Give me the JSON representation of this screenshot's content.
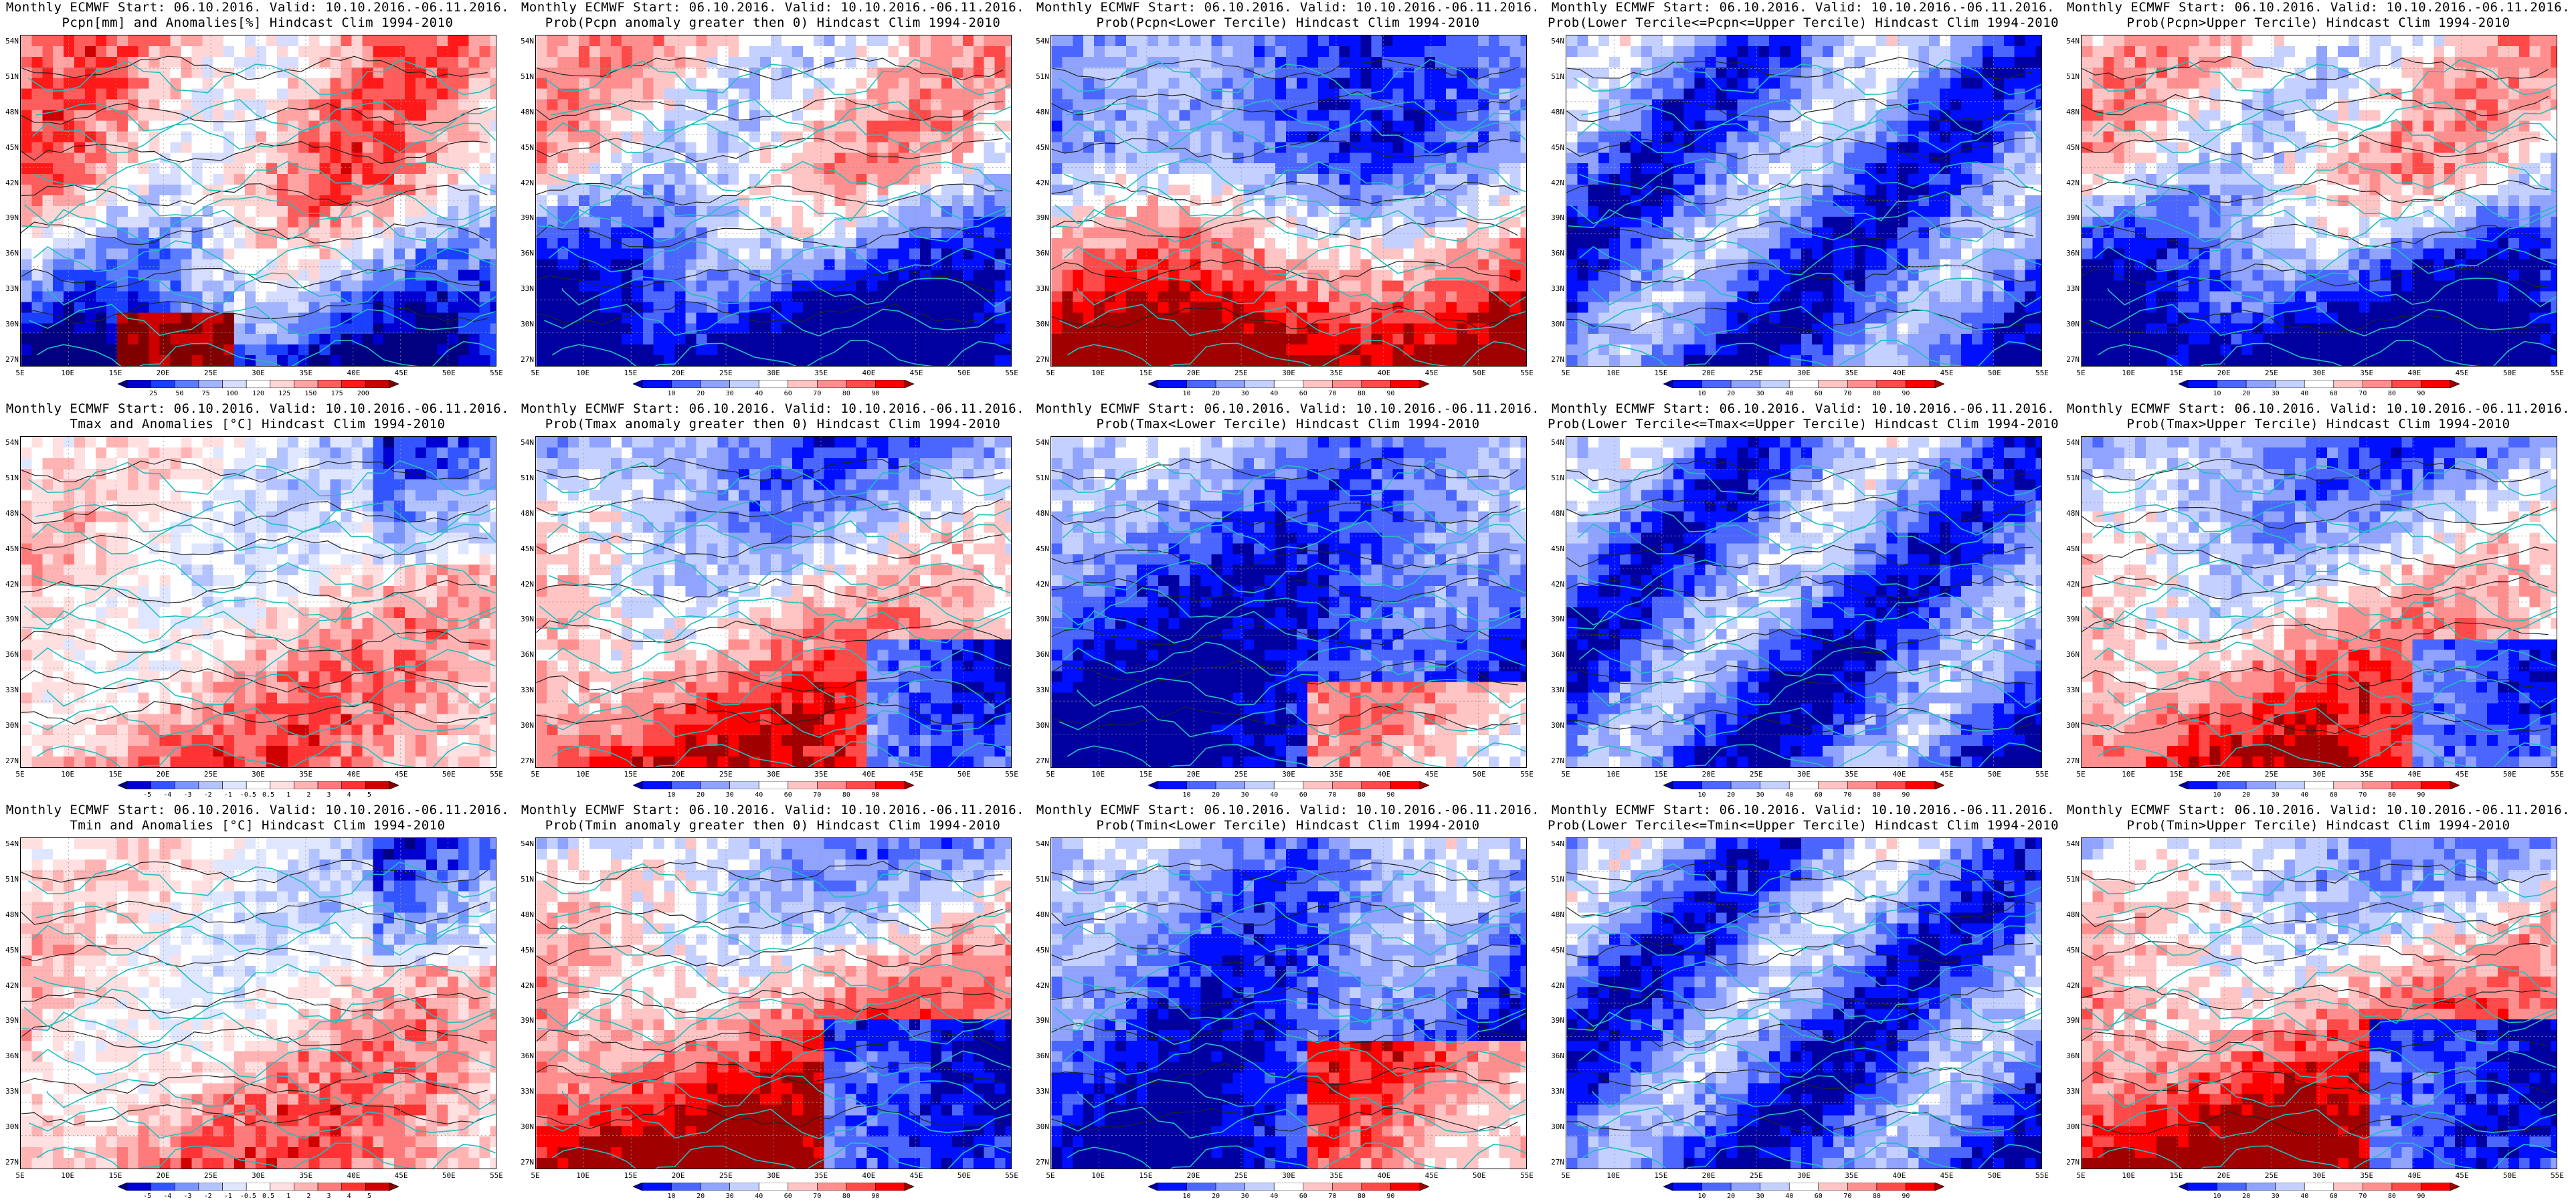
{
  "header_line": "Monthly ECMWF Start: 06.10.2016. Valid: 10.10.2016.-06.11.2016.",
  "lat_labels": [
    "54N",
    "51N",
    "48N",
    "45N",
    "42N",
    "39N",
    "36N",
    "33N",
    "30N",
    "27N"
  ],
  "lon_labels": [
    "5E",
    "10E",
    "15E",
    "20E",
    "25E",
    "30E",
    "35E",
    "40E",
    "45E",
    "50E",
    "55E"
  ],
  "colors": {
    "coast": "#1fbfbf",
    "contour": "#222222",
    "white": "#ffffff"
  },
  "colorbars": {
    "precip": {
      "colors": [
        "#000080",
        "#0000d0",
        "#1a3fff",
        "#5c7cff",
        "#a3b4ff",
        "#d6ddff",
        "#ffffff",
        "#ffd6d6",
        "#ffa3a3",
        "#ff5c5c",
        "#ff1a1a",
        "#cc0000",
        "#800000"
      ],
      "labels": [
        "25",
        "50",
        "75",
        "100",
        "120",
        "125",
        "150",
        "175",
        "200"
      ]
    },
    "prob": {
      "colors": [
        "#0000a0",
        "#0010ff",
        "#4a66ff",
        "#8fa3ff",
        "#c4d0ff",
        "#ffffff",
        "#ffc4c4",
        "#ff8f8f",
        "#ff4a4a",
        "#ff0000",
        "#a00000"
      ],
      "labels": [
        "10",
        "20",
        "30",
        "40",
        "60",
        "70",
        "80",
        "90"
      ]
    },
    "temp": {
      "colors": [
        "#000080",
        "#0000d0",
        "#3355ff",
        "#7a95ff",
        "#b3c3ff",
        "#dfe6ff",
        "#ffffff",
        "#ffdfdf",
        "#ffb3b3",
        "#ff7a7a",
        "#ff3333",
        "#d00000",
        "#800000"
      ],
      "labels": [
        "-5",
        "-4",
        "-3",
        "-2",
        "-1",
        "-0.5",
        "0.5",
        "1",
        "2",
        "3",
        "4",
        "5"
      ]
    }
  },
  "panels": [
    {
      "title": "Pcpn[mm] and Anomalies[%] Hindcast Clim 1994-2010",
      "cbar": "precip",
      "pattern": "pcpn_anom"
    },
    {
      "title": "Prob(Pcpn anomaly greater then 0) Hindcast Clim 1994-2010",
      "cbar": "prob",
      "pattern": "pcpn_prob"
    },
    {
      "title": "Prob(Pcpn<Lower Tercile) Hindcast Clim 1994-2010",
      "cbar": "prob",
      "pattern": "pcpn_lower"
    },
    {
      "title": "Prob(Lower Tercile<=Pcpn<=Upper Tercile) Hindcast Clim 1994-2010",
      "cbar": "prob",
      "pattern": "mid"
    },
    {
      "title": "Prob(Pcpn>Upper Tercile) Hindcast Clim 1994-2010",
      "cbar": "prob",
      "pattern": "pcpn_prob"
    },
    {
      "title": "Tmax and Anomalies [°C] Hindcast Clim 1994-2010",
      "cbar": "temp",
      "pattern": "t_anom"
    },
    {
      "title": "Prob(Tmax anomaly greater then 0) Hindcast Clim 1994-2010",
      "cbar": "prob",
      "pattern": "t_warm"
    },
    {
      "title": "Prob(Tmax<Lower Tercile) Hindcast Clim 1994-2010",
      "cbar": "prob",
      "pattern": "t_cold"
    },
    {
      "title": "Prob(Lower Tercile<=Tmax<=Upper Tercile) Hindcast Clim 1994-2010",
      "cbar": "prob",
      "pattern": "mid"
    },
    {
      "title": "Prob(Tmax>Upper Tercile) Hindcast Clim 1994-2010",
      "cbar": "prob",
      "pattern": "t_warm"
    },
    {
      "title": "Tmin and Anomalies [°C] Hindcast Clim 1994-2010",
      "cbar": "temp",
      "pattern": "t_anom"
    },
    {
      "title": "Prob(Tmin anomaly greater then 0) Hindcast Clim 1994-2010",
      "cbar": "prob",
      "pattern": "tmin_warm"
    },
    {
      "title": "Prob(Tmin<Lower Tercile) Hindcast Clim 1994-2010",
      "cbar": "prob",
      "pattern": "tmin_cold"
    },
    {
      "title": "Prob(Lower Tercile<=Tmin<=Upper Tercile) Hindcast Clim 1994-2010",
      "cbar": "prob",
      "pattern": "mid"
    },
    {
      "title": "Prob(Tmin>Upper Tercile) Hindcast Clim 1994-2010",
      "cbar": "prob",
      "pattern": "tmin_warm"
    }
  ]
}
